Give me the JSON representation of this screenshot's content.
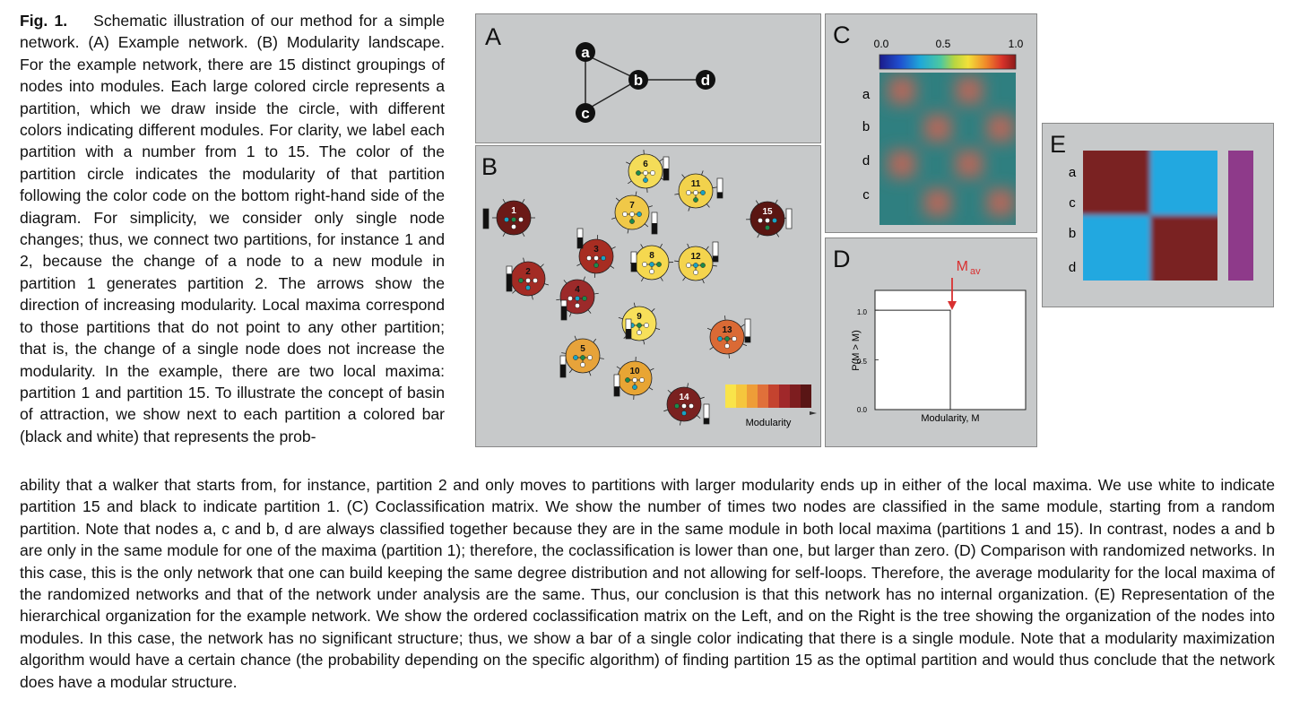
{
  "caption": {
    "fig_label": "Fig. 1.",
    "top_text": "Schematic illustration of our method for a simple network. (A) Example network. (B) Modularity landscape. For the example network, there are 15 distinct groupings of nodes into modules. Each large colored circle represents a partition, which we draw inside the circle, with different colors indicating different modules. For clarity, we label each partition with a number from 1 to 15. The color of the partition circle indicates the modularity of that partition following the color code on the bottom right-hand side of the diagram. For simplicity, we consider only single node changes; thus, we connect two partitions, for instance 1 and 2, because the change of a node to a new module in partition 1 generates partition 2. The arrows show the direction of increasing modularity. Local maxima correspond to those partitions that do not point to any other partition; that is, the change of a single node does not increase the modularity. In the example, there are two local maxima: partition 1 and partition 15. To illustrate the concept of basin of attraction, we show next to each partition a colored bar (black and white) that represents the prob-",
    "bottom_text": "ability that a walker that starts from, for instance, partition 2 and only moves to partitions with larger modularity ends up in either of the local maxima. We use white to indicate partition 15 and black to indicate partition 1. (C) Coclassification matrix. We show the number of times two nodes are classified in the same module, starting from a random partition. Note that nodes a, c and b, d are always classified together because they are in the same module in both local maxima (partitions 1 and 15). In contrast, nodes a and b are only in the same module for one of the maxima (partition 1); therefore, the coclassification is lower than one, but larger than zero. (D) Comparison with randomized networks. In this case, this is the only network that one can build keeping the same degree distribution and not allowing for self-loops. Therefore, the average modularity for the local maxima of the randomized networks and that of the network under analysis are the same. Thus, our conclusion is that this network has no internal organization. (E) Representation of the hierarchical organization for the example network. We show the ordered coclassification matrix on the Left, and on the Right is the tree showing the organization of the nodes into modules. In this case, the network has no significant structure; thus, we show a bar of a single color indicating that there is a single module. Note that a modularity maximization algorithm would have a certain chance (the probability depending on the specific algorithm) of finding partition 15 as the optimal partition and would thus conclude that the network does have a modular structure."
  },
  "panels": {
    "a": {
      "letter": "A",
      "nodes": [
        {
          "label": "a"
        },
        {
          "label": "b"
        },
        {
          "label": "c"
        },
        {
          "label": "d"
        }
      ]
    },
    "b": {
      "letter": "B",
      "partitions": [
        {
          "label": "1",
          "color": "#6b1a17",
          "bar_white": 0.0
        },
        {
          "label": "2",
          "color": "#a32b24",
          "bar_white": 0.3
        },
        {
          "label": "3",
          "color": "#a72d22",
          "bar_white": 0.45
        },
        {
          "label": "4",
          "color": "#9c2a2a",
          "bar_white": 0.3
        },
        {
          "label": "5",
          "color": "#e7a33a",
          "bar_white": 0.4
        },
        {
          "label": "6",
          "color": "#f4dc58",
          "bar_white": 0.5
        },
        {
          "label": "7",
          "color": "#f0c848",
          "bar_white": 0.5
        },
        {
          "label": "8",
          "color": "#f5d84f",
          "bar_white": 0.55
        },
        {
          "label": "9",
          "color": "#f7e05a",
          "bar_white": 0.5
        },
        {
          "label": "10",
          "color": "#e8a534",
          "bar_white": 0.55
        },
        {
          "label": "11",
          "color": "#f2d24c",
          "bar_white": 0.7
        },
        {
          "label": "12",
          "color": "#f4d44e",
          "bar_white": 0.7
        },
        {
          "label": "13",
          "color": "#da6a35",
          "bar_white": 0.75
        },
        {
          "label": "14",
          "color": "#7a2120",
          "bar_white": 0.7
        },
        {
          "label": "15",
          "color": "#5a1612",
          "bar_white": 1.0
        }
      ],
      "legend_label": "Modularity",
      "legend_colors": [
        "#f9e44a",
        "#f5c63d",
        "#ee9d38",
        "#e0703a",
        "#c4432f",
        "#a0282a",
        "#7d1d1f",
        "#591515"
      ]
    },
    "c": {
      "letter": "C",
      "scale_ticks": [
        "0.0",
        "0.5",
        "1.0"
      ],
      "row_labels": [
        "a",
        "b",
        "d",
        "c"
      ]
    },
    "d": {
      "letter": "D",
      "annotation": "M",
      "annotation_sub": "av",
      "xlabel": "Modularity, M",
      "ylabel": "P(M   > M)",
      "yticks": [
        "0.0",
        "0.5",
        "1.0"
      ]
    },
    "e": {
      "letter": "E",
      "row_labels": [
        "a",
        "c",
        "b",
        "d"
      ],
      "module_bar_color": "#8e3a8a"
    }
  },
  "chart_data": {
    "type": "line",
    "title": "",
    "xlabel": "Modularity, M",
    "ylabel": "P(M   > M)",
    "series": [
      {
        "x": [
          0.0,
          0.5,
          0.5
        ],
        "y": [
          1.0,
          1.0,
          0.0
        ]
      }
    ],
    "ylim": [
      0,
      1.2
    ]
  }
}
